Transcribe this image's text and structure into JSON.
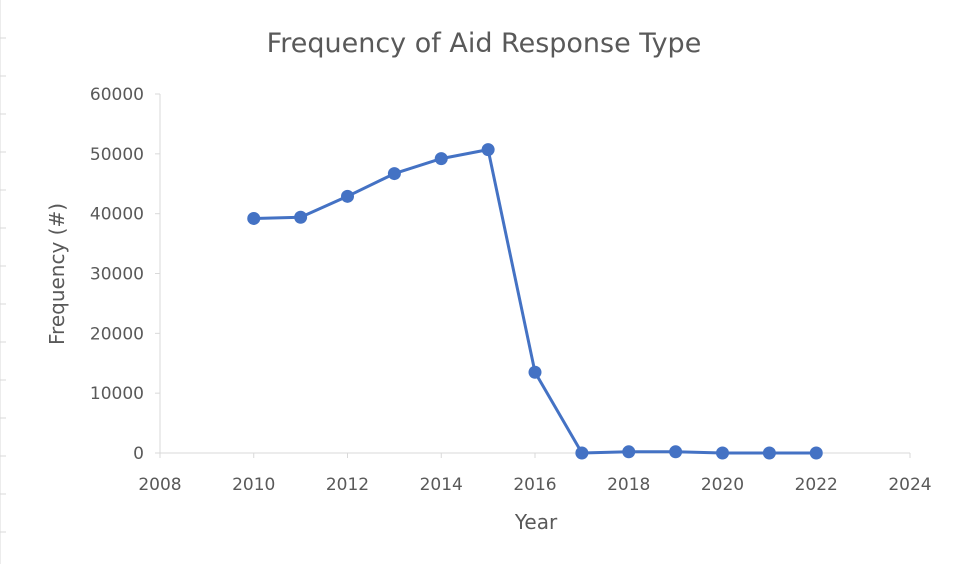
{
  "chart_data": {
    "type": "scatter",
    "title": "Frequency of Aid Response Type",
    "xlabel": "Year",
    "ylabel": "Frequency (#)",
    "xlim": [
      2008,
      2024
    ],
    "ylim": [
      0,
      60000
    ],
    "x_ticks": [
      2008,
      2010,
      2012,
      2014,
      2016,
      2018,
      2020,
      2022,
      2024
    ],
    "y_ticks": [
      0,
      10000,
      20000,
      30000,
      40000,
      50000,
      60000
    ],
    "x_tick_labels": [
      "2008",
      "2010",
      "2012",
      "2014",
      "2016",
      "2018",
      "2020",
      "2022",
      "2024"
    ],
    "y_tick_labels": [
      "0",
      "10000",
      "20000",
      "30000",
      "40000",
      "50000",
      "60000"
    ],
    "grid": false,
    "series": [
      {
        "x": [
          2010,
          2011,
          2012,
          2013,
          2014,
          2015,
          2016,
          2017,
          2018,
          2019,
          2020,
          2021,
          2022
        ],
        "y": [
          39200,
          39400,
          42900,
          46700,
          49200,
          50700,
          13500,
          0,
          200,
          200,
          0,
          0,
          0
        ],
        "color": "#4472c4",
        "style": "line-with-markers"
      }
    ]
  }
}
